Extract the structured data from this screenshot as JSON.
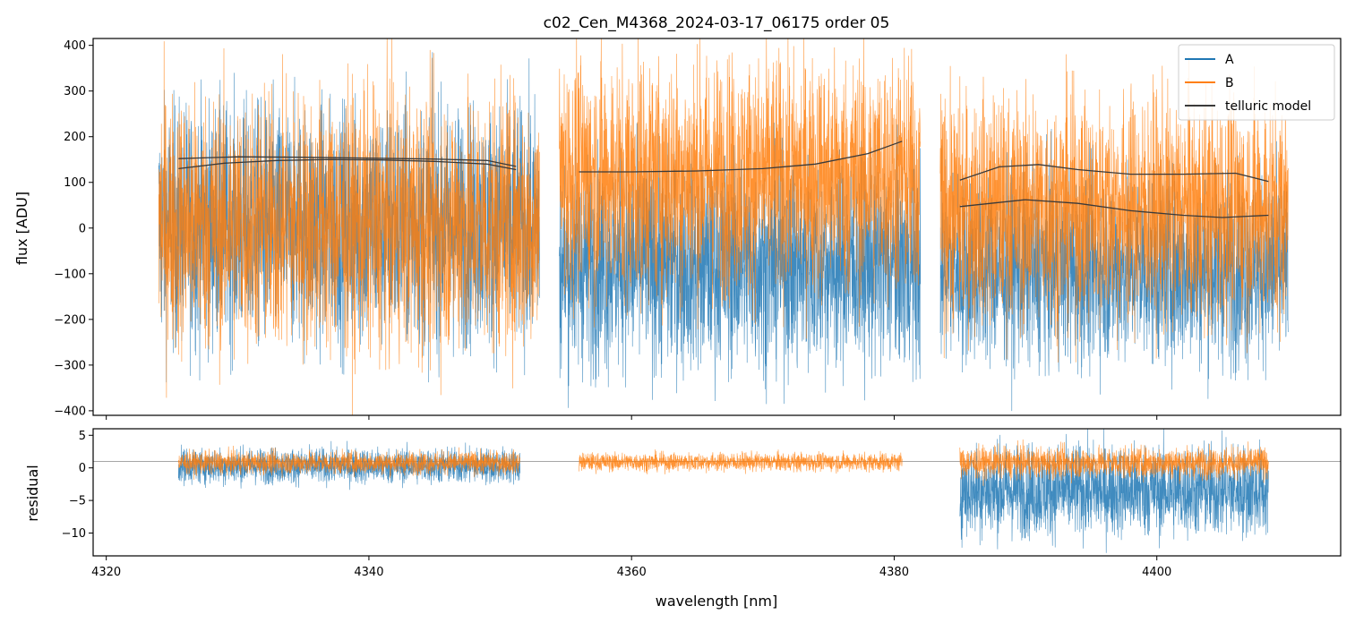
{
  "colors": {
    "A": "#1f77b4",
    "B": "#ff7f0e",
    "telluric": "#3a3a3a",
    "zero_line": "#888888"
  },
  "chart_data": {
    "type": "line",
    "title": "c02_Cen_M4368_2024-03-17_06175  order 05",
    "xlabel": "wavelength [nm]",
    "xlim": [
      4319,
      4414
    ],
    "xticks": [
      4320,
      4340,
      4360,
      4380,
      4400
    ],
    "xtick_labels": [
      "4320",
      "4340",
      "4360",
      "4380",
      "4400"
    ],
    "panels": [
      {
        "name": "flux",
        "ylabel": "flux [ADU]",
        "ylim": [
          -410,
          415
        ],
        "yticks": [
          -400,
          -300,
          -200,
          -100,
          0,
          100,
          200,
          300,
          400
        ],
        "ytick_labels": [
          "−400",
          "−300",
          "−200",
          "−100",
          "0",
          "100",
          "200",
          "300",
          "400"
        ],
        "segments": [
          {
            "x_range": [
              4324,
              4353
            ],
            "A": {
              "mean": 5,
              "spread": 240
            },
            "B": {
              "mean": 10,
              "spread": 260
            }
          },
          {
            "x_range": [
              4354.5,
              4382
            ],
            "A": {
              "mean": -80,
              "spread": 210
            },
            "B": {
              "mean": 110,
              "spread": 240
            }
          },
          {
            "x_range": [
              4383.5,
              4410
            ],
            "A": {
              "mean": -90,
              "spread": 190
            },
            "B": {
              "mean": 40,
              "spread": 230
            }
          }
        ],
        "telluric_model": [
          {
            "x": [
              4325.5,
              4329,
              4333,
              4337,
              4341,
              4345,
              4349,
              4351.2
            ],
            "y": [
              130,
              142,
              148,
              150,
              149,
              146,
              140,
              128
            ]
          },
          {
            "x": [
              4325.5,
              4330,
              4335,
              4340,
              4345,
              4349,
              4351.2
            ],
            "y": [
              152,
              156,
              155,
              153,
              151,
              148,
              135
            ]
          },
          {
            "x": [
              4356,
              4360,
              4365,
              4370,
              4374,
              4378,
              4380.6
            ],
            "y": [
              123,
              123,
              125,
              130,
              140,
              163,
              190
            ]
          },
          {
            "x": [
              4385,
              4388,
              4391,
              4394,
              4398,
              4402,
              4406,
              4408.5
            ],
            "y": [
              105,
              134,
              139,
              128,
              118,
              118,
              120,
              102
            ]
          },
          {
            "x": [
              4385,
              4390,
              4394,
              4398,
              4402,
              4405,
              4408.5
            ],
            "y": [
              47,
              62,
              54,
              38,
              28,
              23,
              28
            ]
          }
        ]
      },
      {
        "name": "residual",
        "ylabel": "residual",
        "ylim": [
          -13.5,
          6
        ],
        "yticks": [
          -10,
          -5,
          0,
          5
        ],
        "ytick_labels": [
          "−10",
          "−5",
          "0",
          "5"
        ],
        "zero_line": 1,
        "segments": [
          {
            "x_range": [
              4325.5,
              4351.5
            ],
            "A": {
              "mean": 0.3,
              "spread": 2.5
            },
            "B": {
              "mean": 0.8,
              "spread": 1.6
            }
          },
          {
            "x_range": [
              4356,
              4380.6
            ],
            "A": null,
            "B": {
              "mean": 0.9,
              "spread": 1.3
            }
          },
          {
            "x_range": [
              4385,
              4408.5
            ],
            "A": {
              "mean": -3.5,
              "spread": 6.5
            },
            "B": {
              "mean": 0.8,
              "spread": 2.2
            }
          }
        ]
      }
    ],
    "legend": {
      "placement": "top-right",
      "entries": [
        {
          "label": "A",
          "series": "A"
        },
        {
          "label": "B",
          "series": "B"
        },
        {
          "label": "telluric model",
          "series": "telluric"
        }
      ]
    }
  }
}
